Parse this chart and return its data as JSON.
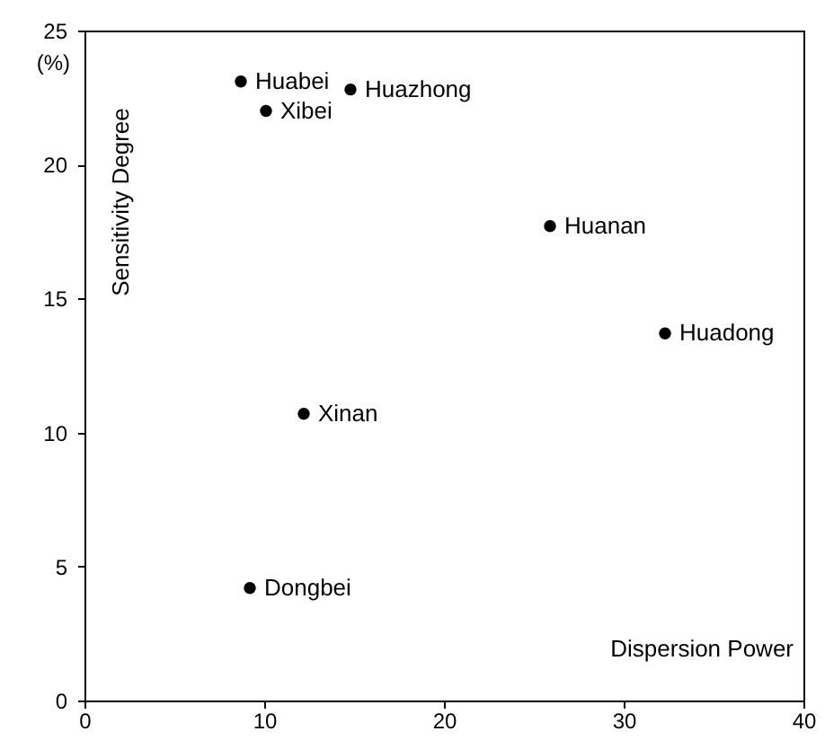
{
  "chart_data": {
    "type": "scatter",
    "xlabel": "Dispersion Power",
    "ylabel": "Sensitivity Degree",
    "x": [
      8.7,
      10.1,
      14.8,
      25.9,
      32.3,
      12.2,
      9.2
    ],
    "series": [
      {
        "color": "#000000",
        "values": [
          23.1,
          22.0,
          22.8,
          17.7,
          13.7,
          10.7,
          4.2
        ]
      }
    ],
    "xlim": [
      0,
      40
    ],
    "xticks": [
      0,
      10,
      20,
      30,
      40
    ],
    "ylim": [
      0,
      25
    ],
    "yticks": [
      0,
      5,
      10,
      15,
      20,
      25
    ],
    "marker": "circle",
    "grid": false,
    "annotations": [
      "(%)",
      {
        "text": "Huabei",
        "x": 8.7,
        "y": 23.1
      },
      {
        "text": "Xibei",
        "x": 10.1,
        "y": 22.0
      },
      {
        "text": "Huazhong",
        "x": 14.8,
        "y": 22.8
      },
      {
        "text": "Huanan",
        "x": 25.9,
        "y": 17.7
      },
      {
        "text": "Huadong",
        "x": 32.3,
        "y": 13.7
      },
      {
        "text": "Xinan",
        "x": 12.2,
        "y": 10.7
      },
      {
        "text": "Dongbei",
        "x": 9.2,
        "y": 4.2
      }
    ]
  }
}
